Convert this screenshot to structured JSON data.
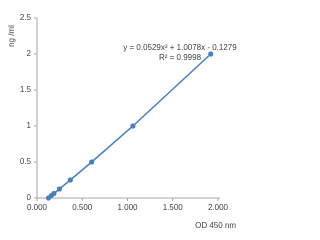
{
  "chart_data": {
    "type": "scatter",
    "y_label": "ng /ml",
    "x_label": "OD 450 nm",
    "annotations": [
      "y = 0.0529x² + 1.0078x - 0.1279",
      "R² = 0.9998"
    ],
    "series": [
      {
        "color": "#4a7ebb",
        "x": [
          0.127,
          0.157,
          0.187,
          0.248,
          0.368,
          0.604,
          1.06,
          1.92
        ],
        "values": [
          0,
          0.03125,
          0.0625,
          0.125,
          0.25,
          0.5,
          1,
          2
        ]
      }
    ],
    "xlim": [
      0,
      2
    ],
    "xticks": [
      {
        "value": 0,
        "label": "0.000"
      },
      {
        "value": 0.5,
        "label": "0.500"
      },
      {
        "value": 1,
        "label": "1.000"
      },
      {
        "value": 1.5,
        "label": "1.500"
      },
      {
        "value": 2,
        "label": "2.000"
      }
    ],
    "ylim": [
      0,
      2.5
    ],
    "yticks": [
      0,
      0.5,
      1,
      1.5,
      2,
      2.5
    ],
    "grid": false
  }
}
